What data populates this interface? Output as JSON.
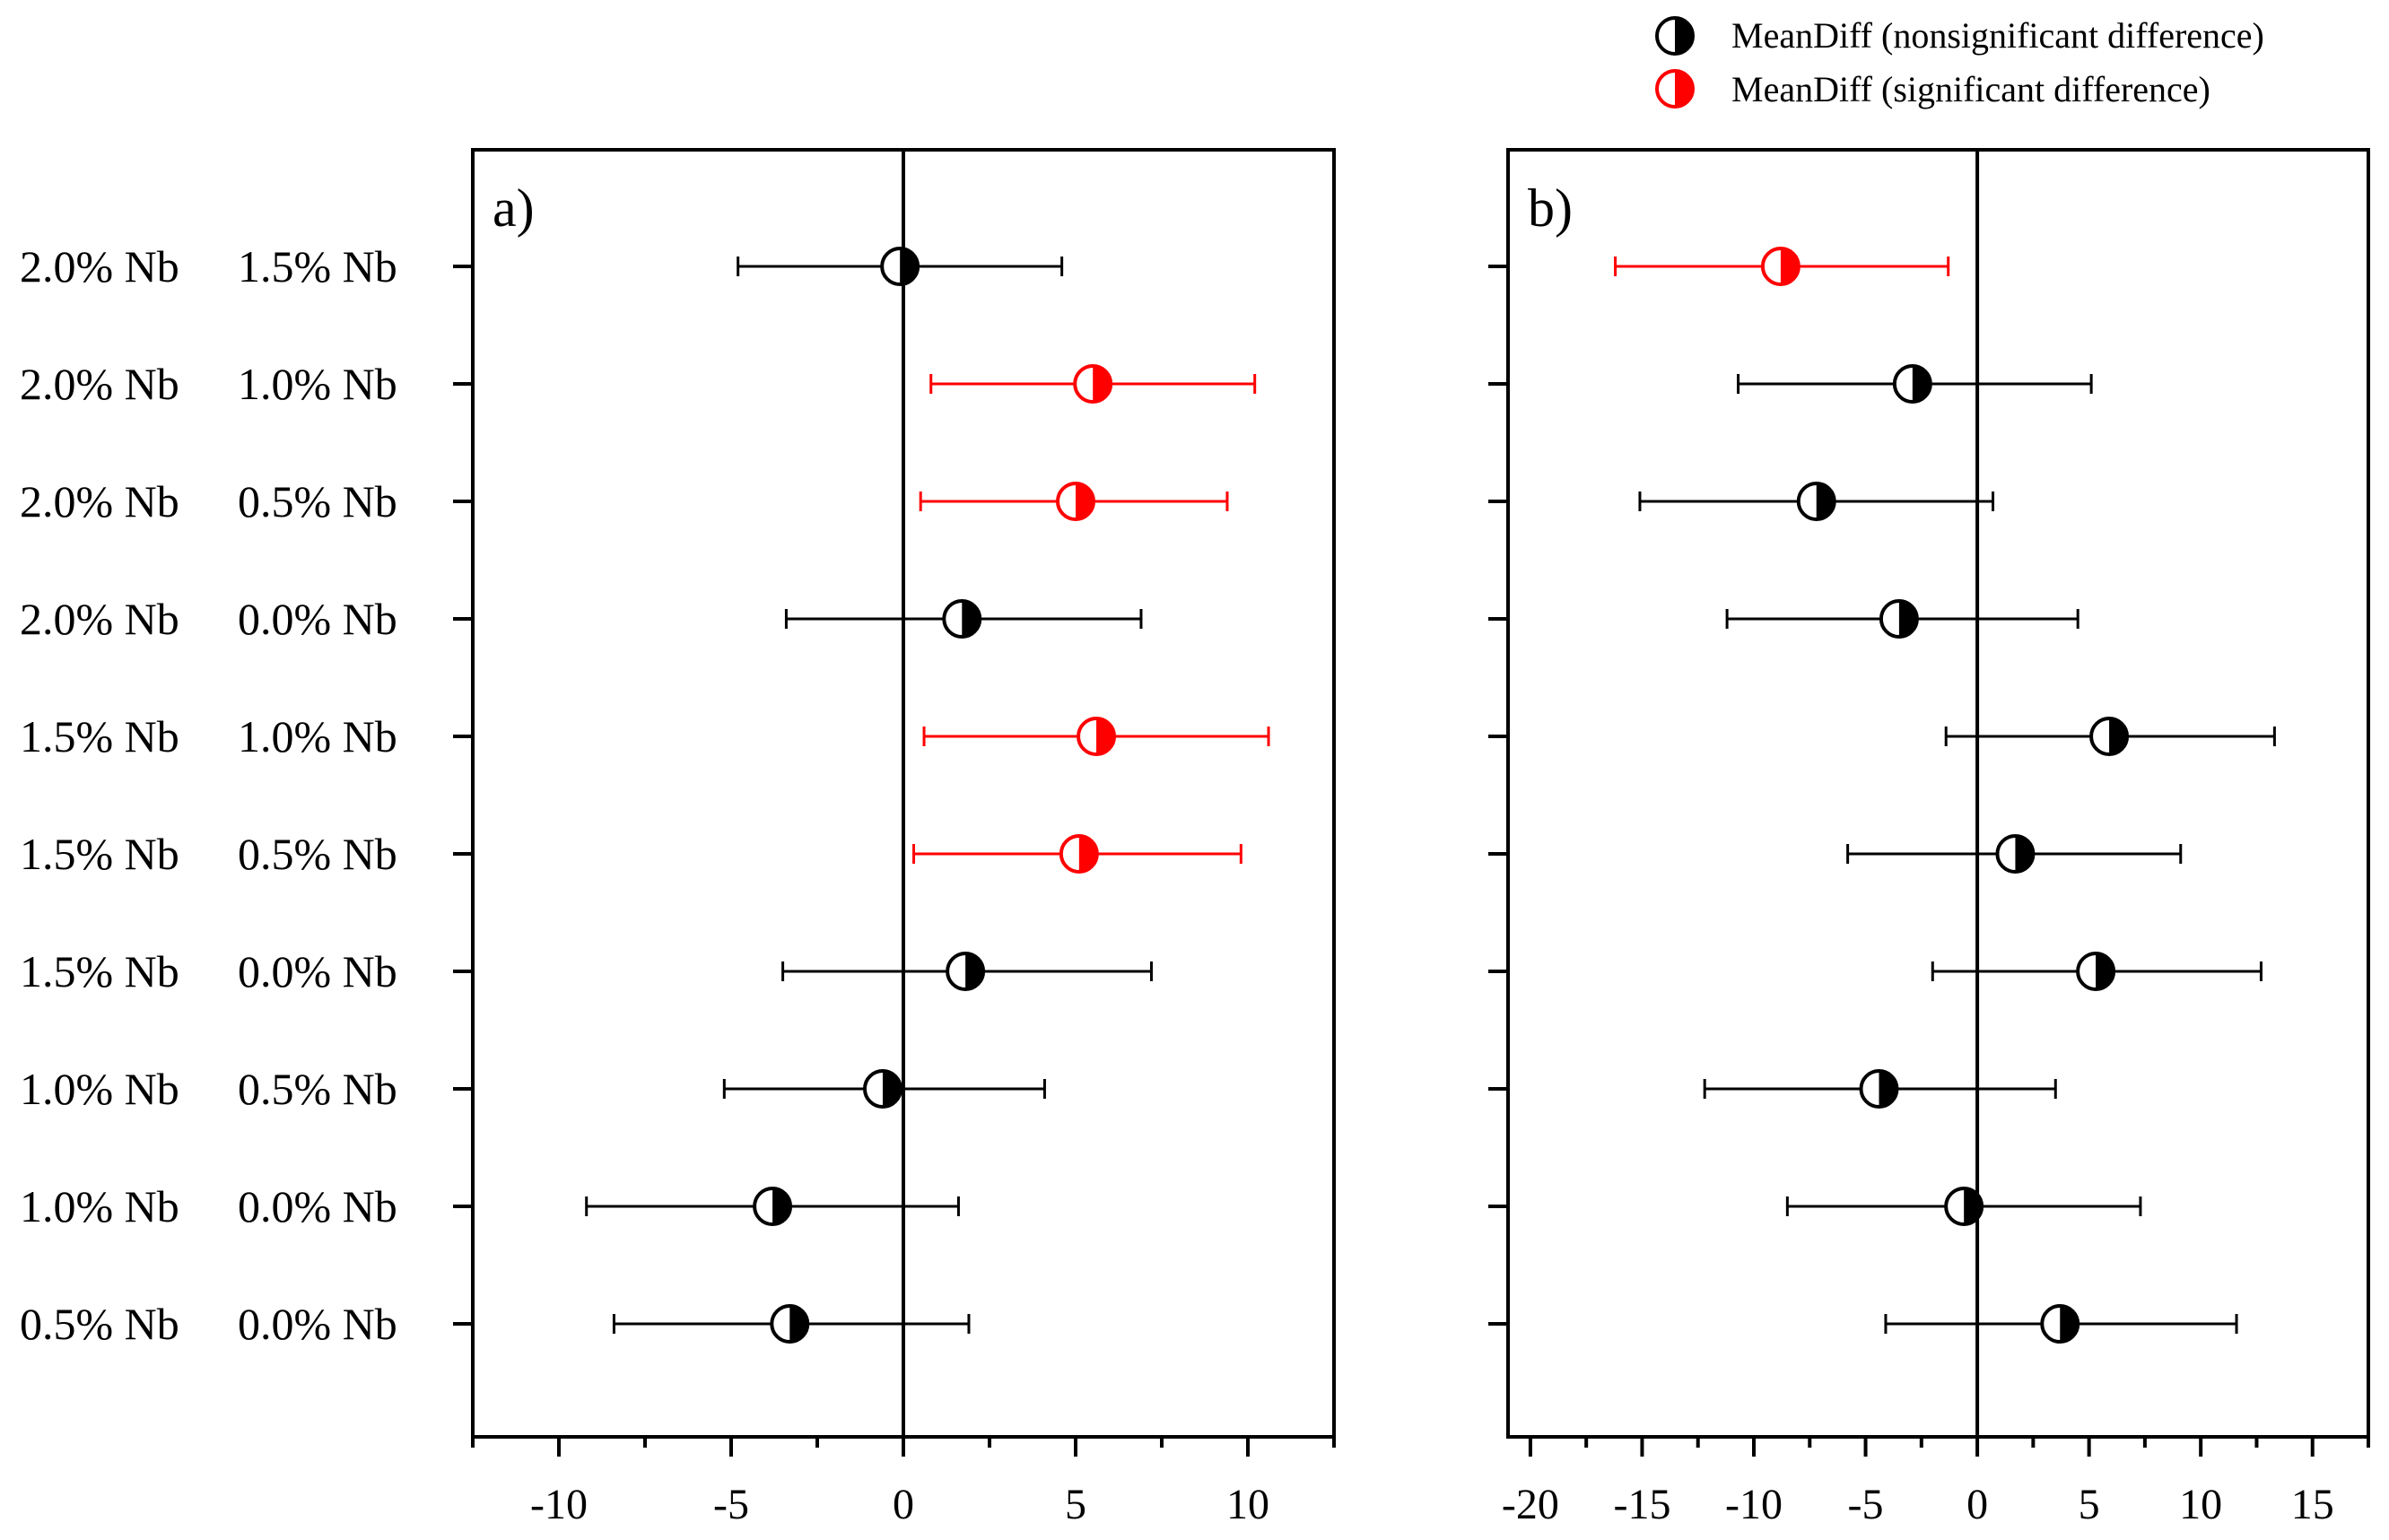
{
  "chart_data": [
    {
      "type": "interval",
      "panel_label": "a)",
      "xlim": [
        -12.5,
        12.5
      ],
      "xticks": [
        -10,
        -5,
        0,
        5,
        10
      ],
      "tick_labels": [
        "-10",
        "-5",
        "0",
        "5",
        "10"
      ],
      "reference_line": 0,
      "points": [
        {
          "comparison": [
            "2.0% Nb",
            "1.5% Nb"
          ],
          "mean": -0.1,
          "lower": -4.8,
          "upper": 4.6,
          "significant": false
        },
        {
          "comparison": [
            "2.0% Nb",
            "1.0% Nb"
          ],
          "mean": 5.5,
          "lower": 0.8,
          "upper": 10.2,
          "significant": true
        },
        {
          "comparison": [
            "2.0% Nb",
            "0.5% Nb"
          ],
          "mean": 5.0,
          "lower": 0.5,
          "upper": 9.4,
          "significant": true
        },
        {
          "comparison": [
            "2.0% Nb",
            "0.0% Nb"
          ],
          "mean": 1.7,
          "lower": -3.4,
          "upper": 6.9,
          "significant": false
        },
        {
          "comparison": [
            "1.5% Nb",
            "1.0% Nb"
          ],
          "mean": 5.6,
          "lower": 0.6,
          "upper": 10.6,
          "significant": true
        },
        {
          "comparison": [
            "1.5% Nb",
            "0.5% Nb"
          ],
          "mean": 5.1,
          "lower": 0.3,
          "upper": 9.8,
          "significant": true
        },
        {
          "comparison": [
            "1.5% Nb",
            "0.0% Nb"
          ],
          "mean": 1.8,
          "lower": -3.5,
          "upper": 7.2,
          "significant": false
        },
        {
          "comparison": [
            "1.0% Nb",
            "0.5% Nb"
          ],
          "mean": -0.6,
          "lower": -5.2,
          "upper": 4.1,
          "significant": false
        },
        {
          "comparison": [
            "1.0% Nb",
            "0.0% Nb"
          ],
          "mean": -3.8,
          "lower": -9.2,
          "upper": 1.6,
          "significant": false
        },
        {
          "comparison": [
            "0.5% Nb",
            "0.0% Nb"
          ],
          "mean": -3.3,
          "lower": -8.4,
          "upper": 1.9,
          "significant": false
        }
      ]
    },
    {
      "type": "interval",
      "panel_label": "b)",
      "xlim": [
        -21,
        17.5
      ],
      "xticks": [
        -20,
        -15,
        -10,
        -5,
        0,
        5,
        10,
        15
      ],
      "tick_labels": [
        "-20",
        "-15",
        "-10",
        "-5",
        "0",
        "5",
        "10",
        "15"
      ],
      "reference_line": 0,
      "points": [
        {
          "comparison": [
            "2.0% Nb",
            "1.5% Nb"
          ],
          "mean": -8.8,
          "lower": -16.2,
          "upper": -1.3,
          "significant": true
        },
        {
          "comparison": [
            "2.0% Nb",
            "1.0% Nb"
          ],
          "mean": -2.9,
          "lower": -10.7,
          "upper": 5.1,
          "significant": false
        },
        {
          "comparison": [
            "2.0% Nb",
            "0.5% Nb"
          ],
          "mean": -7.2,
          "lower": -15.1,
          "upper": 0.7,
          "significant": false
        },
        {
          "comparison": [
            "2.0% Nb",
            "0.0% Nb"
          ],
          "mean": -3.5,
          "lower": -11.2,
          "upper": 4.5,
          "significant": false
        },
        {
          "comparison": [
            "1.5% Nb",
            "1.0% Nb"
          ],
          "mean": 5.9,
          "lower": -1.4,
          "upper": 13.3,
          "significant": false
        },
        {
          "comparison": [
            "1.5% Nb",
            "0.5% Nb"
          ],
          "mean": 1.7,
          "lower": -5.8,
          "upper": 9.1,
          "significant": false
        },
        {
          "comparison": [
            "1.5% Nb",
            "0.0% Nb"
          ],
          "mean": 5.3,
          "lower": -2.0,
          "upper": 12.7,
          "significant": false
        },
        {
          "comparison": [
            "1.0% Nb",
            "0.5% Nb"
          ],
          "mean": -4.4,
          "lower": -12.2,
          "upper": 3.5,
          "significant": false
        },
        {
          "comparison": [
            "1.0% Nb",
            "0.0% Nb"
          ],
          "mean": -0.6,
          "lower": -8.5,
          "upper": 7.3,
          "significant": false
        },
        {
          "comparison": [
            "0.5% Nb",
            "0.0% Nb"
          ],
          "mean": 3.7,
          "lower": -4.1,
          "upper": 11.6,
          "significant": false
        }
      ]
    }
  ],
  "legend": {
    "position": "top-right",
    "entries": [
      {
        "label": "MeanDiff (nonsignificant difference)",
        "color": "#000000"
      },
      {
        "label": "MeanDiff (significant difference)",
        "color": "#ff0000"
      }
    ]
  },
  "colors": {
    "nonsignificant": "#000000",
    "significant": "#ff0000",
    "axis": "#000000",
    "background": "#ffffff"
  }
}
